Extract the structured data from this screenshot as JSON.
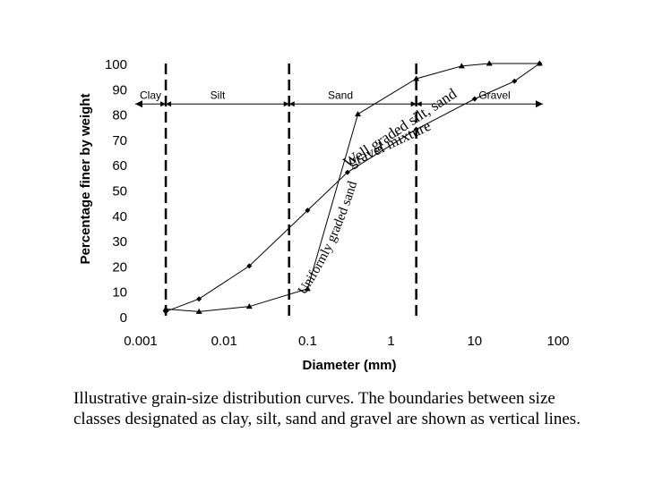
{
  "chart_data": {
    "type": "line",
    "x_scale": "log",
    "xlim": [
      0.001,
      100
    ],
    "ylim": [
      0,
      100
    ],
    "xlabel": "Diameter (mm)",
    "ylabel": "Percentage finer by weight",
    "x_ticks": [
      {
        "value": 0.001,
        "label": "0.001"
      },
      {
        "value": 0.01,
        "label": "0.01"
      },
      {
        "value": 0.1,
        "label": "0.1"
      },
      {
        "value": 1,
        "label": "1"
      },
      {
        "value": 10,
        "label": "10"
      },
      {
        "value": 100,
        "label": "100"
      }
    ],
    "y_ticks": [
      0,
      10,
      20,
      30,
      40,
      50,
      60,
      70,
      80,
      90,
      100
    ],
    "boundaries": [
      0.002,
      0.06,
      2
    ],
    "size_classes": [
      {
        "label": "Clay",
        "x_from": 0.001,
        "x_to": 0.002
      },
      {
        "label": "Silt",
        "x_from": 0.002,
        "x_to": 0.06
      },
      {
        "label": "Sand",
        "x_from": 0.06,
        "x_to": 2
      },
      {
        "label": "Gravel",
        "x_from": 2,
        "x_to": 100
      }
    ],
    "class_arrow_y": 84,
    "series": [
      {
        "name": "Well graded silt, sand, gravel mixture",
        "marker": "diamond",
        "x": [
          0.002,
          0.005,
          0.02,
          0.1,
          0.3,
          2,
          10,
          30,
          60
        ],
        "y": [
          2,
          7,
          20,
          42,
          57,
          74,
          86,
          93,
          100
        ]
      },
      {
        "name": "Uniformly graded sand",
        "marker": "triangle",
        "x": [
          0.002,
          0.005,
          0.02,
          0.1,
          0.4,
          2,
          7,
          15,
          60
        ],
        "y": [
          3,
          2,
          4,
          11,
          80,
          94,
          99,
          100,
          100
        ]
      }
    ],
    "annotations": [
      {
        "text": "Well graded silt, sand,",
        "line1": "Well graded silt, sand,",
        "line2": "gravel mixture"
      },
      {
        "text": "Uniformly graded sand"
      }
    ],
    "grid": false,
    "legend": "none"
  },
  "caption": "Illustrative grain-size distribution curves.  The boundaries between size classes designated as clay, silt, sand and gravel are shown as vertical lines."
}
